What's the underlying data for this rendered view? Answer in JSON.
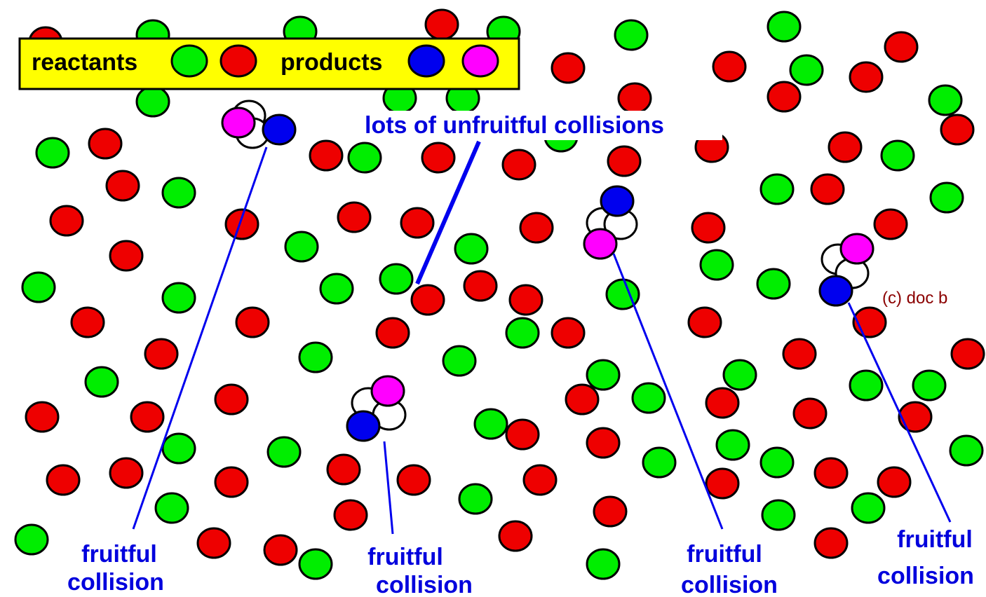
{
  "legend": {
    "reactants": "reactants",
    "products": "products"
  },
  "annotations": {
    "unfruitful": "lots of unfruitful collisions",
    "fruitful": [
      {
        "line1": "fruitful",
        "line2": "collision"
      },
      {
        "line1": "fruitful",
        "line2": "collision"
      },
      {
        "line1": "fruitful",
        "line2": "collision"
      },
      {
        "line1": "fruitful",
        "line2": "collision"
      }
    ]
  },
  "credit": "(c) doc b"
}
